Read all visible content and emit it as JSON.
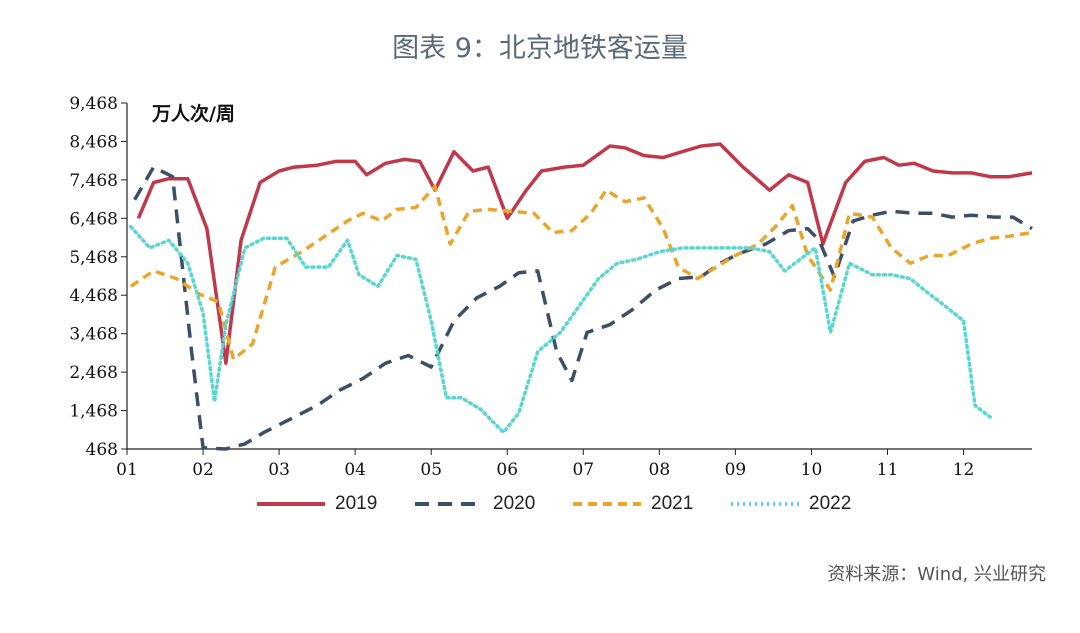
{
  "title": "图表 9：北京地铁客运量",
  "source": "资料来源：Wind, 兴业研究",
  "colors": {
    "2019": "#c0394b",
    "2020": "#3d4f66",
    "2021": "#e9a52c",
    "2022": "#59d6cf"
  },
  "chart_data": {
    "type": "line",
    "unit": "万人次/周",
    "ylim": [
      468,
      9468
    ],
    "yticks": [
      "9,468",
      "8,468",
      "7,468",
      "6,468",
      "5,468",
      "4,468",
      "3,468",
      "2,468",
      "1,468",
      "468"
    ],
    "xticks": [
      "01",
      "02",
      "03",
      "04",
      "05",
      "06",
      "07",
      "08",
      "09",
      "10",
      "11",
      "12"
    ],
    "xlim": [
      1,
      12.9
    ],
    "series": [
      {
        "name": "2019",
        "style": "solid",
        "color": "#c0394b",
        "x": [
          1.15,
          1.35,
          1.55,
          1.8,
          2.05,
          2.3,
          2.5,
          2.75,
          3.0,
          3.2,
          3.5,
          3.75,
          4.0,
          4.15,
          4.4,
          4.65,
          4.85,
          5.05,
          5.3,
          5.55,
          5.75,
          6.0,
          6.25,
          6.45,
          6.75,
          7.0,
          7.35,
          7.55,
          7.8,
          8.05,
          8.3,
          8.55,
          8.8,
          9.1,
          9.45,
          9.7,
          9.95,
          10.15,
          10.45,
          10.7,
          10.95,
          11.15,
          11.35,
          11.6,
          11.85,
          12.1,
          12.35,
          12.6,
          12.9
        ],
        "values": [
          6468,
          7400,
          7500,
          7500,
          6200,
          2700,
          5900,
          7400,
          7700,
          7800,
          7850,
          7950,
          7950,
          7600,
          7900,
          8000,
          7950,
          7200,
          8200,
          7700,
          7800,
          6468,
          7200,
          7700,
          7800,
          7850,
          8350,
          8300,
          8100,
          8050,
          8200,
          8350,
          8400,
          7800,
          7200,
          7600,
          7400,
          5800,
          7400,
          7950,
          8050,
          7850,
          7900,
          7700,
          7650,
          7650,
          7550,
          7550,
          7650
        ]
      },
      {
        "name": "2020",
        "style": "dashed",
        "color": "#3d4f66",
        "x": [
          1.1,
          1.35,
          1.6,
          1.85,
          2.0,
          2.3,
          2.55,
          2.8,
          3.1,
          3.5,
          3.8,
          4.1,
          4.4,
          4.7,
          5.0,
          5.3,
          5.6,
          5.9,
          6.15,
          6.4,
          6.65,
          6.85,
          7.05,
          7.35,
          7.65,
          7.95,
          8.25,
          8.55,
          8.8,
          9.05,
          9.4,
          9.7,
          9.95,
          10.1,
          10.3,
          10.55,
          10.8,
          11.05,
          11.35,
          11.6,
          11.85,
          12.1,
          12.4,
          12.65,
          12.9
        ],
        "values": [
          6950,
          7800,
          7550,
          3000,
          500,
          468,
          600,
          900,
          1200,
          1600,
          2000,
          2300,
          2700,
          2900,
          2600,
          3800,
          4400,
          4700,
          5050,
          5100,
          3000,
          2250,
          3500,
          3700,
          4100,
          4600,
          4900,
          4950,
          5300,
          5550,
          5800,
          6150,
          6200,
          5900,
          4950,
          6400,
          6550,
          6650,
          6600,
          6600,
          6500,
          6550,
          6500,
          6500,
          6200
        ]
      },
      {
        "name": "2021",
        "style": "dashed",
        "color": "#e9a52c",
        "x": [
          1.05,
          1.35,
          1.65,
          1.95,
          2.2,
          2.4,
          2.65,
          2.95,
          3.3,
          3.6,
          3.9,
          4.1,
          4.35,
          4.55,
          4.8,
          5.05,
          5.25,
          5.5,
          5.75,
          6.05,
          6.35,
          6.6,
          6.85,
          7.1,
          7.3,
          7.55,
          7.8,
          8.05,
          8.25,
          8.5,
          8.75,
          9.0,
          9.3,
          9.55,
          9.75,
          9.95,
          10.25,
          10.5,
          10.8,
          11.05,
          11.3,
          11.55,
          11.8,
          12.1,
          12.35,
          12.6,
          12.9
        ],
        "values": [
          4700,
          5100,
          4900,
          4500,
          4300,
          2800,
          3200,
          5200,
          5600,
          6000,
          6400,
          6600,
          6400,
          6700,
          6750,
          7300,
          5800,
          6650,
          6700,
          6650,
          6600,
          6100,
          6150,
          6600,
          7200,
          6900,
          7000,
          6200,
          5200,
          4900,
          5200,
          5500,
          5800,
          6300,
          6800,
          5500,
          4600,
          6600,
          6500,
          5700,
          5300,
          5500,
          5500,
          5800,
          5950,
          6000,
          6100
        ]
      },
      {
        "name": "2022",
        "style": "dotted",
        "color": "#59d6cf",
        "x": [
          1.05,
          1.3,
          1.55,
          1.8,
          2.0,
          2.15,
          2.3,
          2.55,
          2.8,
          3.1,
          3.35,
          3.65,
          3.9,
          4.05,
          4.3,
          4.55,
          4.8,
          5.0,
          5.2,
          5.4,
          5.65,
          5.95,
          6.15,
          6.4,
          6.7,
          6.95,
          7.2,
          7.45,
          7.7,
          8.0,
          8.3,
          8.6,
          8.9,
          9.2,
          9.45,
          9.65,
          9.85,
          10.05,
          10.25,
          10.5,
          10.8,
          11.05,
          11.3,
          11.55,
          11.75,
          12.0,
          12.15,
          12.35
        ],
        "values": [
          6250,
          5700,
          5900,
          5300,
          4000,
          1700,
          3700,
          5700,
          5950,
          5950,
          5200,
          5200,
          5900,
          5000,
          4700,
          5500,
          5400,
          3800,
          1800,
          1800,
          1500,
          900,
          1400,
          3000,
          3500,
          4200,
          4900,
          5300,
          5400,
          5600,
          5700,
          5700,
          5700,
          5700,
          5600,
          5100,
          5400,
          5700,
          3500,
          5300,
          5000,
          5000,
          4900,
          4500,
          4200,
          3800,
          1600,
          1300
        ]
      }
    ]
  },
  "legend": [
    {
      "label": "2019",
      "style": "solid",
      "color": "#c0394b"
    },
    {
      "label": "2020",
      "style": "dashed",
      "color": "#3d4f66"
    },
    {
      "label": "2021",
      "style": "dashed",
      "color": "#e9a52c"
    },
    {
      "label": "2022",
      "style": "dotted",
      "color": "#59d6cf"
    }
  ]
}
